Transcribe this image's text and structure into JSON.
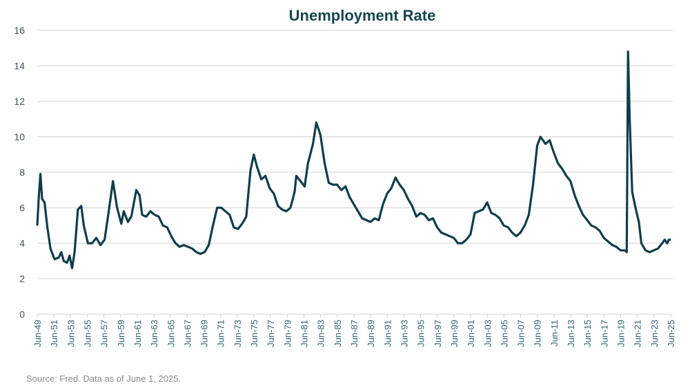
{
  "chart_data": {
    "type": "line",
    "title": "Unemployment Rate",
    "xlabel": "",
    "ylabel": "",
    "ylim": [
      0,
      16
    ],
    "yticks": [
      0,
      2,
      4,
      6,
      8,
      10,
      12,
      14,
      16
    ],
    "xlim": [
      1949.42,
      2025.42
    ],
    "xtick_labels": [
      "Jun-49",
      "Jun-51",
      "Jun-53",
      "Jun-55",
      "Jun-57",
      "Jun-59",
      "Jun-61",
      "Jun-63",
      "Jun-65",
      "Jun-67",
      "Jun-69",
      "Jun-71",
      "Jun-73",
      "Jun-75",
      "Jun-77",
      "Jun-79",
      "Jun-81",
      "Jun-83",
      "Jun-85",
      "Jun-87",
      "Jun-89",
      "Jun-91",
      "Jun-93",
      "Jun-95",
      "Jun-97",
      "Jun-99",
      "Jun-01",
      "Jun-03",
      "Jun-05",
      "Jun-07",
      "Jun-09",
      "Jun-11",
      "Jun-13",
      "Jun-15",
      "Jun-17",
      "Jun-19",
      "Jun-21",
      "Jun-23",
      "Jun-25"
    ],
    "grid": true,
    "legend": "none",
    "series": [
      {
        "name": "Unemployment Rate",
        "color": "#0f3d4a",
        "points": [
          [
            1949.42,
            5.0
          ],
          [
            1949.6,
            6.6
          ],
          [
            1949.8,
            7.9
          ],
          [
            1950.0,
            6.5
          ],
          [
            1950.3,
            6.3
          ],
          [
            1950.6,
            5.0
          ],
          [
            1951.0,
            3.7
          ],
          [
            1951.5,
            3.1
          ],
          [
            1952.0,
            3.2
          ],
          [
            1952.3,
            3.5
          ],
          [
            1952.6,
            3.0
          ],
          [
            1953.0,
            2.9
          ],
          [
            1953.3,
            3.3
          ],
          [
            1953.6,
            2.6
          ],
          [
            1953.9,
            3.5
          ],
          [
            1954.3,
            5.9
          ],
          [
            1954.7,
            6.1
          ],
          [
            1955.0,
            5.0
          ],
          [
            1955.5,
            4.0
          ],
          [
            1956.0,
            4.0
          ],
          [
            1956.5,
            4.3
          ],
          [
            1957.0,
            3.9
          ],
          [
            1957.5,
            4.2
          ],
          [
            1958.0,
            5.8
          ],
          [
            1958.5,
            7.5
          ],
          [
            1959.0,
            6.0
          ],
          [
            1959.5,
            5.1
          ],
          [
            1959.8,
            5.8
          ],
          [
            1960.3,
            5.2
          ],
          [
            1960.7,
            5.5
          ],
          [
            1961.3,
            7.0
          ],
          [
            1961.7,
            6.7
          ],
          [
            1962.0,
            5.6
          ],
          [
            1962.5,
            5.5
          ],
          [
            1963.0,
            5.8
          ],
          [
            1963.5,
            5.6
          ],
          [
            1964.0,
            5.5
          ],
          [
            1964.5,
            5.0
          ],
          [
            1965.0,
            4.9
          ],
          [
            1965.5,
            4.4
          ],
          [
            1966.0,
            4.0
          ],
          [
            1966.5,
            3.8
          ],
          [
            1967.0,
            3.9
          ],
          [
            1967.5,
            3.8
          ],
          [
            1968.0,
            3.7
          ],
          [
            1968.5,
            3.5
          ],
          [
            1969.0,
            3.4
          ],
          [
            1969.5,
            3.5
          ],
          [
            1970.0,
            3.9
          ],
          [
            1970.5,
            5.0
          ],
          [
            1971.0,
            6.0
          ],
          [
            1971.5,
            6.0
          ],
          [
            1972.0,
            5.8
          ],
          [
            1972.5,
            5.6
          ],
          [
            1973.0,
            4.9
          ],
          [
            1973.5,
            4.8
          ],
          [
            1974.0,
            5.1
          ],
          [
            1974.5,
            5.5
          ],
          [
            1975.0,
            8.1
          ],
          [
            1975.4,
            9.0
          ],
          [
            1975.8,
            8.3
          ],
          [
            1976.3,
            7.6
          ],
          [
            1976.8,
            7.8
          ],
          [
            1977.3,
            7.1
          ],
          [
            1977.8,
            6.8
          ],
          [
            1978.3,
            6.1
          ],
          [
            1978.8,
            5.9
          ],
          [
            1979.3,
            5.8
          ],
          [
            1979.8,
            6.0
          ],
          [
            1980.3,
            6.9
          ],
          [
            1980.5,
            7.8
          ],
          [
            1981.0,
            7.5
          ],
          [
            1981.5,
            7.2
          ],
          [
            1981.9,
            8.5
          ],
          [
            1982.5,
            9.6
          ],
          [
            1982.9,
            10.8
          ],
          [
            1983.4,
            10.1
          ],
          [
            1983.9,
            8.5
          ],
          [
            1984.4,
            7.4
          ],
          [
            1984.9,
            7.3
          ],
          [
            1985.4,
            7.3
          ],
          [
            1985.9,
            7.0
          ],
          [
            1986.4,
            7.2
          ],
          [
            1986.9,
            6.6
          ],
          [
            1987.4,
            6.2
          ],
          [
            1987.9,
            5.8
          ],
          [
            1988.4,
            5.4
          ],
          [
            1988.9,
            5.3
          ],
          [
            1989.4,
            5.2
          ],
          [
            1989.9,
            5.4
          ],
          [
            1990.4,
            5.3
          ],
          [
            1990.9,
            6.2
          ],
          [
            1991.4,
            6.8
          ],
          [
            1991.9,
            7.1
          ],
          [
            1992.4,
            7.7
          ],
          [
            1992.9,
            7.3
          ],
          [
            1993.4,
            7.0
          ],
          [
            1993.9,
            6.5
          ],
          [
            1994.4,
            6.1
          ],
          [
            1994.9,
            5.5
          ],
          [
            1995.4,
            5.7
          ],
          [
            1995.9,
            5.6
          ],
          [
            1996.4,
            5.3
          ],
          [
            1996.9,
            5.4
          ],
          [
            1997.4,
            4.9
          ],
          [
            1997.9,
            4.6
          ],
          [
            1998.4,
            4.5
          ],
          [
            1998.9,
            4.4
          ],
          [
            1999.4,
            4.3
          ],
          [
            1999.9,
            4.0
          ],
          [
            2000.4,
            4.0
          ],
          [
            2000.9,
            4.2
          ],
          [
            2001.4,
            4.5
          ],
          [
            2001.9,
            5.7
          ],
          [
            2002.4,
            5.8
          ],
          [
            2002.9,
            5.9
          ],
          [
            2003.4,
            6.3
          ],
          [
            2003.9,
            5.7
          ],
          [
            2004.4,
            5.6
          ],
          [
            2004.9,
            5.4
          ],
          [
            2005.4,
            5.0
          ],
          [
            2005.9,
            4.9
          ],
          [
            2006.4,
            4.6
          ],
          [
            2006.9,
            4.4
          ],
          [
            2007.4,
            4.6
          ],
          [
            2007.9,
            5.0
          ],
          [
            2008.4,
            5.6
          ],
          [
            2008.9,
            7.3
          ],
          [
            2009.4,
            9.5
          ],
          [
            2009.8,
            10.0
          ],
          [
            2010.4,
            9.6
          ],
          [
            2010.9,
            9.8
          ],
          [
            2011.4,
            9.1
          ],
          [
            2011.9,
            8.5
          ],
          [
            2012.4,
            8.2
          ],
          [
            2012.9,
            7.8
          ],
          [
            2013.4,
            7.5
          ],
          [
            2013.9,
            6.7
          ],
          [
            2014.4,
            6.1
          ],
          [
            2014.9,
            5.6
          ],
          [
            2015.4,
            5.3
          ],
          [
            2015.9,
            5.0
          ],
          [
            2016.4,
            4.9
          ],
          [
            2016.9,
            4.7
          ],
          [
            2017.4,
            4.3
          ],
          [
            2017.9,
            4.1
          ],
          [
            2018.4,
            3.9
          ],
          [
            2018.9,
            3.8
          ],
          [
            2019.4,
            3.6
          ],
          [
            2019.9,
            3.6
          ],
          [
            2020.15,
            3.5
          ],
          [
            2020.3,
            14.8
          ],
          [
            2020.5,
            11.0
          ],
          [
            2020.8,
            6.9
          ],
          [
            2021.2,
            6.0
          ],
          [
            2021.6,
            5.2
          ],
          [
            2021.9,
            4.0
          ],
          [
            2022.4,
            3.6
          ],
          [
            2022.9,
            3.5
          ],
          [
            2023.4,
            3.6
          ],
          [
            2023.9,
            3.7
          ],
          [
            2024.4,
            4.0
          ],
          [
            2024.7,
            4.2
          ],
          [
            2025.0,
            4.0
          ],
          [
            2025.2,
            4.2
          ],
          [
            2025.42,
            4.2
          ]
        ]
      }
    ]
  },
  "source_note": "Source: Fred. Data as of June 1, 2025."
}
